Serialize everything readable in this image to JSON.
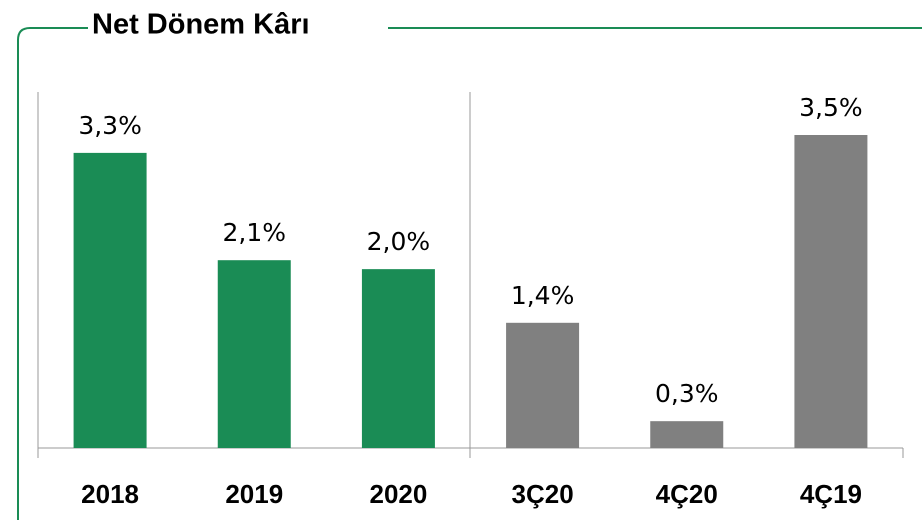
{
  "chart_data": {
    "type": "bar",
    "title": "Net Dönem Kârı",
    "categories": [
      "2018",
      "2019",
      "2020",
      "3Ç20",
      "4Ç20",
      "4Ç19"
    ],
    "values": [
      3.3,
      2.1,
      2.0,
      1.4,
      0.3,
      3.5
    ],
    "value_labels": [
      "3,3%",
      "2,1%",
      "2,0%",
      "1,4%",
      "0,3%",
      "3,5%"
    ],
    "colors": [
      "#1a8c55",
      "#1a8c55",
      "#1a8c55",
      "#808080",
      "#808080",
      "#808080"
    ]
  }
}
